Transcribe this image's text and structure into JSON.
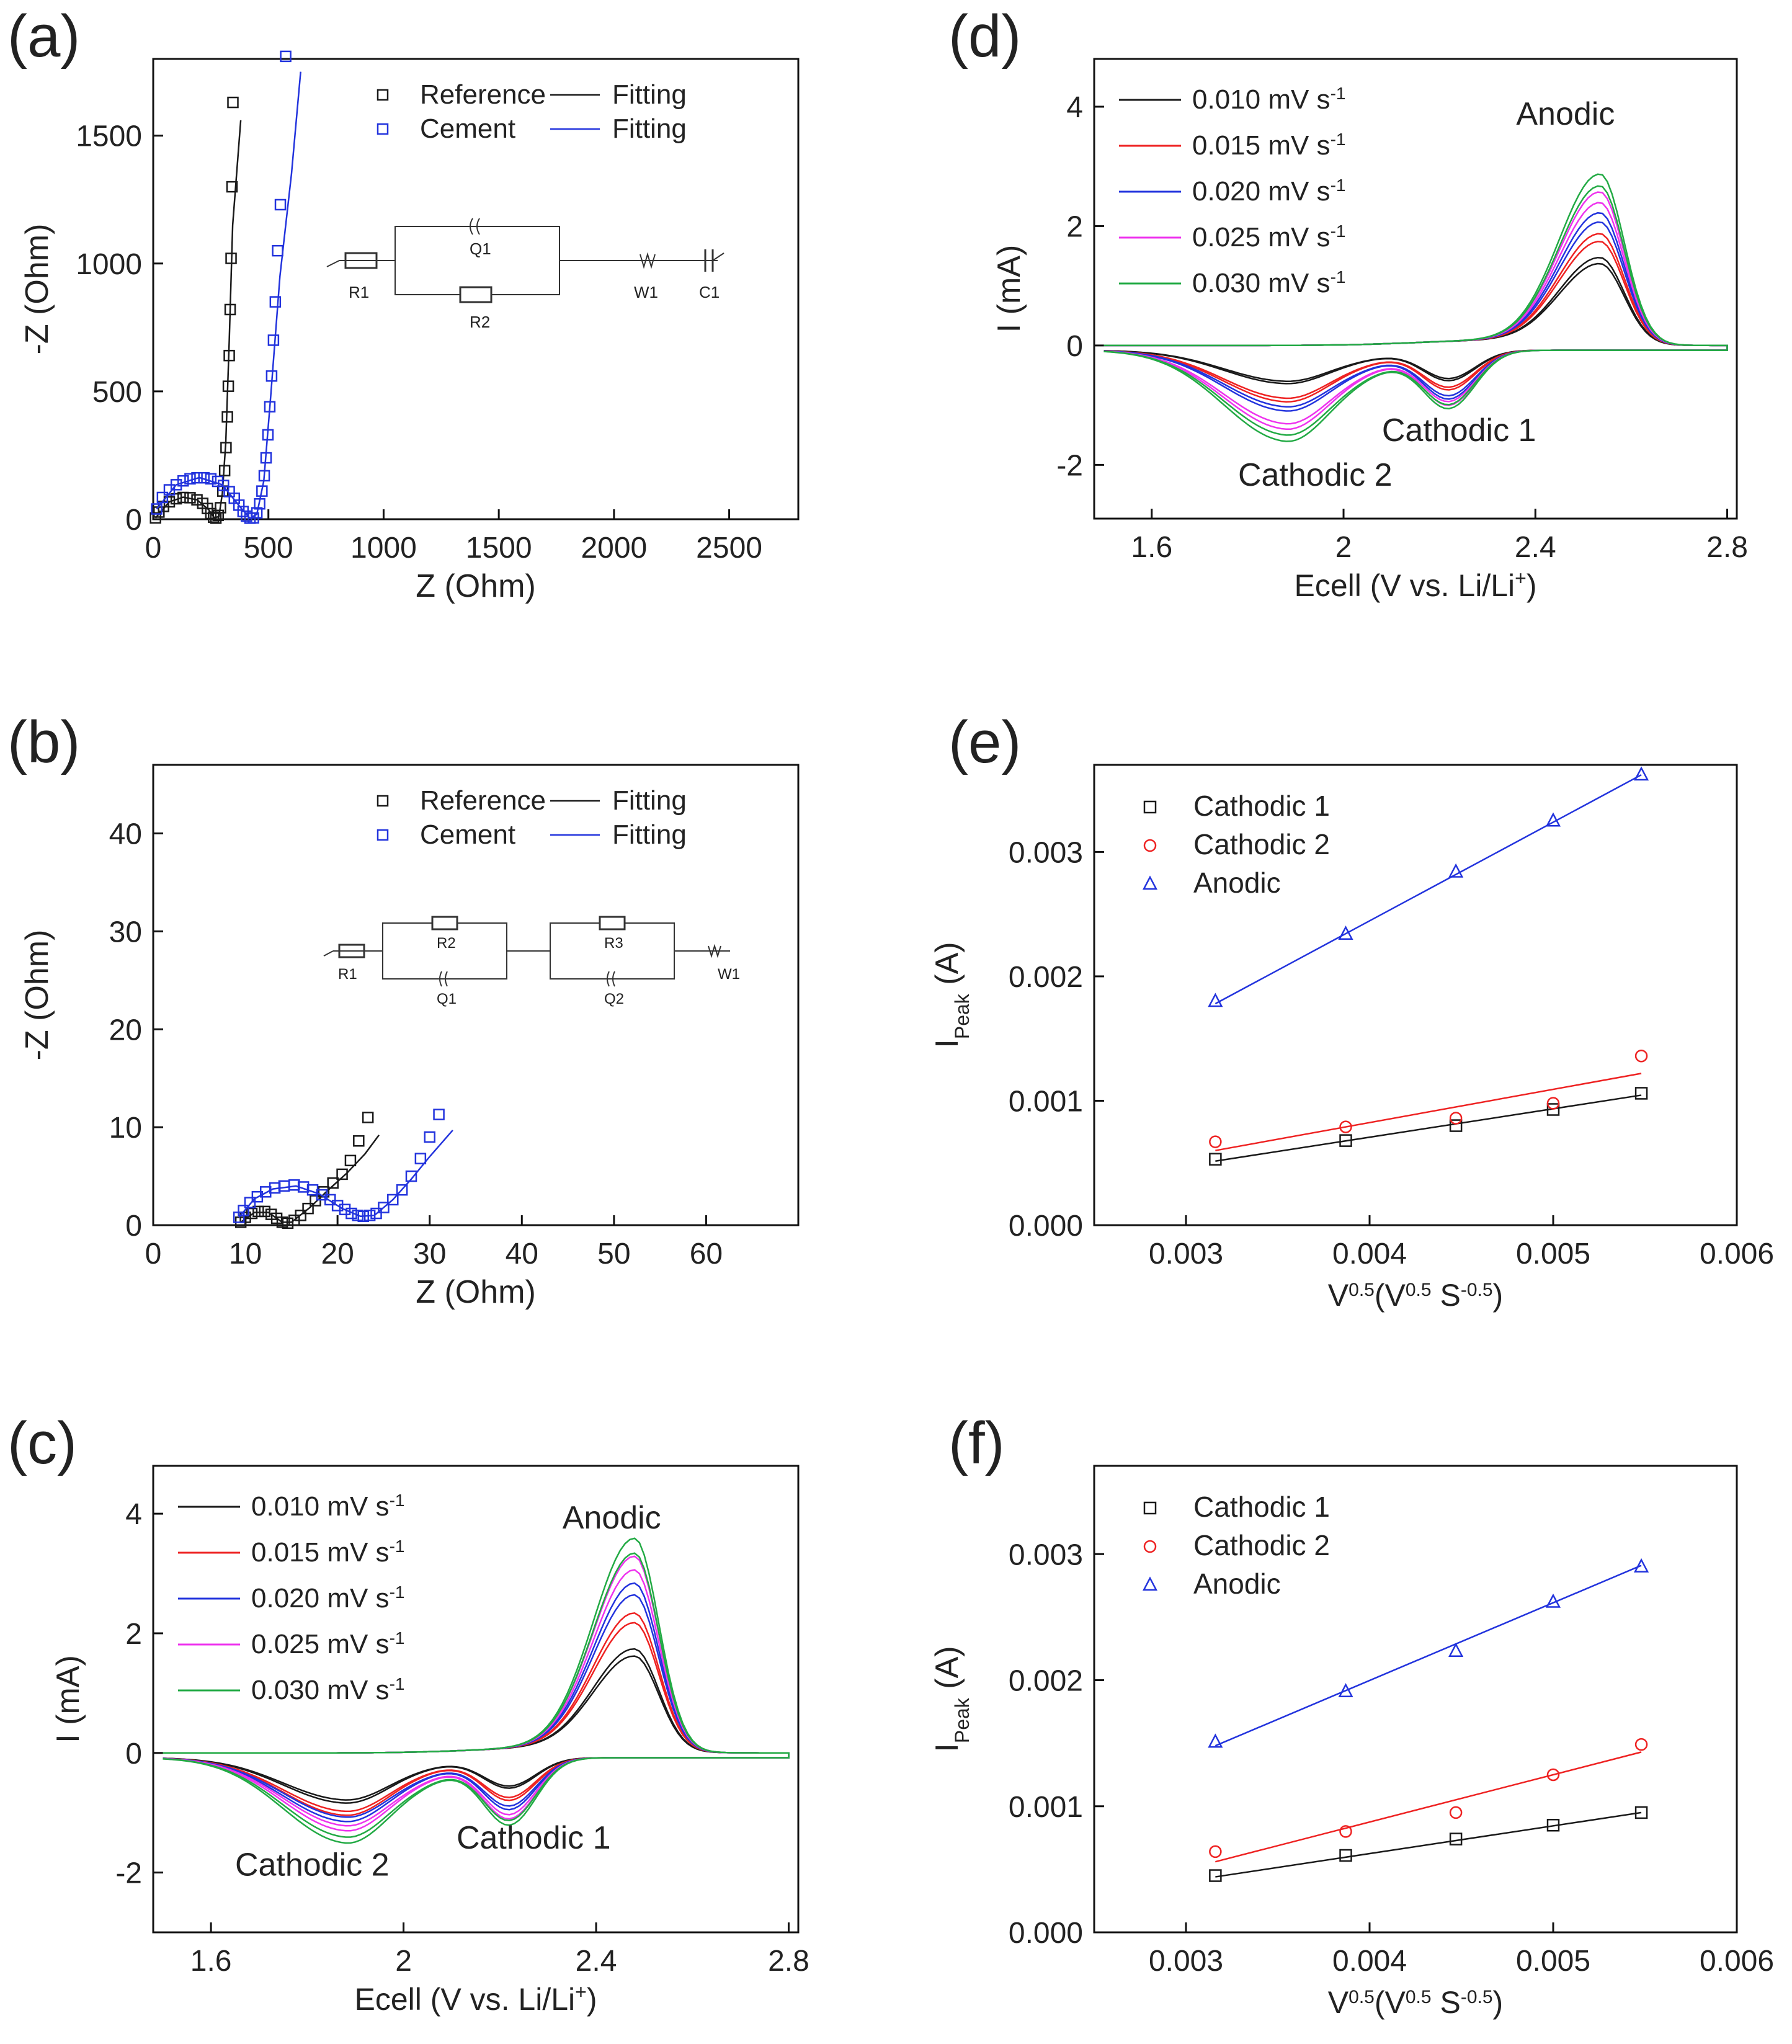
{
  "colors": {
    "black": "#1a1a1a",
    "red": "#ee2222",
    "blue": "#2233dd",
    "magenta": "#ee33ee",
    "green": "#22aa44",
    "axis": "#111111"
  },
  "chart_data": [
    {
      "id": "a",
      "panel_label": "(a)",
      "type": "scatter",
      "xlabel": "Z (Ohm)",
      "ylabel": "-Z (Ohm)",
      "xlim": [
        0,
        2800
      ],
      "ylim": [
        0,
        1800
      ],
      "xticks": [
        0,
        500,
        1000,
        1500,
        2000,
        2500
      ],
      "yticks": [
        0,
        500,
        1000,
        1500
      ],
      "legend": [
        {
          "label": "Reference",
          "marker": "square",
          "color": "#1a1a1a"
        },
        {
          "label": "Cement",
          "marker": "square",
          "color": "#2233dd"
        },
        {
          "label": "Fitting",
          "line": true,
          "color": "#1a1a1a"
        },
        {
          "label": "Fitting",
          "line": true,
          "color": "#2233dd"
        }
      ],
      "circuit": {
        "labels": [
          "R1",
          "Q1",
          "R2",
          "W1",
          "C1"
        ]
      },
      "series": [
        {
          "name": "Reference",
          "color": "#1a1a1a",
          "points": [
            [
              10,
              5
            ],
            [
              25,
              28
            ],
            [
              45,
              50
            ],
            [
              70,
              68
            ],
            [
              100,
              80
            ],
            [
              130,
              85
            ],
            [
              160,
              84
            ],
            [
              190,
              76
            ],
            [
              215,
              62
            ],
            [
              235,
              42
            ],
            [
              250,
              22
            ],
            [
              262,
              8
            ],
            [
              272,
              4
            ],
            [
              282,
              15
            ],
            [
              292,
              45
            ],
            [
              302,
              110
            ],
            [
              310,
              190
            ],
            [
              316,
              280
            ],
            [
              322,
              400
            ],
            [
              326,
              520
            ],
            [
              330,
              640
            ],
            [
              334,
              820
            ],
            [
              338,
              1020
            ],
            [
              342,
              1300
            ],
            [
              346,
              1630
            ]
          ],
          "fit": [
            [
              10,
              5
            ],
            [
              70,
              68
            ],
            [
              130,
              86
            ],
            [
              190,
              76
            ],
            [
              240,
              38
            ],
            [
              265,
              6
            ],
            [
              285,
              10
            ],
            [
              300,
              100
            ],
            [
              315,
              300
            ],
            [
              330,
              700
            ],
            [
              345,
              1150
            ],
            [
              380,
              1560
            ]
          ]
        },
        {
          "name": "Cement",
          "color": "#2233dd",
          "points": [
            [
              15,
              40
            ],
            [
              40,
              85
            ],
            [
              70,
              115
            ],
            [
              100,
              135
            ],
            [
              130,
              150
            ],
            [
              160,
              158
            ],
            [
              190,
              162
            ],
            [
              220,
              162
            ],
            [
              250,
              158
            ],
            [
              280,
              148
            ],
            [
              305,
              132
            ],
            [
              330,
              108
            ],
            [
              352,
              82
            ],
            [
              372,
              55
            ],
            [
              390,
              30
            ],
            [
              405,
              12
            ],
            [
              420,
              4
            ],
            [
              435,
              5
            ],
            [
              450,
              25
            ],
            [
              462,
              60
            ],
            [
              472,
              110
            ],
            [
              482,
              170
            ],
            [
              490,
              240
            ],
            [
              498,
              330
            ],
            [
              506,
              440
            ],
            [
              514,
              560
            ],
            [
              522,
              700
            ],
            [
              530,
              850
            ],
            [
              540,
              1050
            ],
            [
              552,
              1230
            ],
            [
              575,
              1810
            ]
          ],
          "fit": [
            [
              15,
              40
            ],
            [
              100,
              135
            ],
            [
              200,
              163
            ],
            [
              300,
              135
            ],
            [
              380,
              45
            ],
            [
              420,
              4
            ],
            [
              450,
              20
            ],
            [
              480,
              150
            ],
            [
              510,
              480
            ],
            [
              550,
              950
            ],
            [
              600,
              1350
            ],
            [
              640,
              1750
            ]
          ]
        }
      ]
    },
    {
      "id": "b",
      "panel_label": "(b)",
      "type": "scatter",
      "xlabel": "Z (Ohm)",
      "ylabel": "-Z (Ohm)",
      "xlim": [
        0,
        70
      ],
      "ylim": [
        0,
        47
      ],
      "xticks": [
        0,
        10,
        20,
        30,
        40,
        50,
        60
      ],
      "yticks": [
        0,
        10,
        20,
        30,
        40
      ],
      "legend": [
        {
          "label": "Reference",
          "marker": "square",
          "color": "#1a1a1a"
        },
        {
          "label": "Cement",
          "marker": "square",
          "color": "#2233dd"
        },
        {
          "label": "Fitting",
          "line": true,
          "color": "#1a1a1a"
        },
        {
          "label": "Fitting",
          "line": true,
          "color": "#2233dd"
        }
      ],
      "circuit": {
        "labels": [
          "R1",
          "R2",
          "Q1",
          "R3",
          "Q2",
          "W1"
        ]
      },
      "series": [
        {
          "name": "Reference",
          "color": "#1a1a1a",
          "points": [
            [
              9.5,
              0.3
            ],
            [
              10,
              0.8
            ],
            [
              10.7,
              1.2
            ],
            [
              11.4,
              1.4
            ],
            [
              12.1,
              1.4
            ],
            [
              12.8,
              1.1
            ],
            [
              13.4,
              0.7
            ],
            [
              14,
              0.3
            ],
            [
              14.6,
              0.2
            ],
            [
              15.3,
              0.5
            ],
            [
              16,
              1
            ],
            [
              16.8,
              1.7
            ],
            [
              17.6,
              2.5
            ],
            [
              18.5,
              3.4
            ],
            [
              19.5,
              4.3
            ],
            [
              20.5,
              5.2
            ],
            [
              21.4,
              6.6
            ],
            [
              22.3,
              8.6
            ],
            [
              23.3,
              11
            ]
          ],
          "fit": [
            [
              9.5,
              0.3
            ],
            [
              11,
              1.3
            ],
            [
              12.5,
              1.3
            ],
            [
              14,
              0.3
            ],
            [
              15,
              0.3
            ],
            [
              17,
              1.8
            ],
            [
              19,
              3.6
            ],
            [
              21,
              5.3
            ],
            [
              23,
              7.3
            ],
            [
              24.5,
              9.2
            ]
          ]
        },
        {
          "name": "Cement",
          "color": "#2233dd",
          "points": [
            [
              9.3,
              0.8
            ],
            [
              9.8,
              1.5
            ],
            [
              10.5,
              2.3
            ],
            [
              11.3,
              2.9
            ],
            [
              12.2,
              3.4
            ],
            [
              13.2,
              3.8
            ],
            [
              14.2,
              4
            ],
            [
              15.3,
              4.1
            ],
            [
              16.3,
              3.9
            ],
            [
              17.3,
              3.6
            ],
            [
              18.3,
              3.1
            ],
            [
              19.2,
              2.6
            ],
            [
              20,
              2
            ],
            [
              20.8,
              1.6
            ],
            [
              21.5,
              1.2
            ],
            [
              22.2,
              1
            ],
            [
              22.8,
              0.9
            ],
            [
              23.5,
              1
            ],
            [
              24.2,
              1.2
            ],
            [
              25,
              1.8
            ],
            [
              26,
              2.6
            ],
            [
              27,
              3.6
            ],
            [
              28,
              5
            ],
            [
              29,
              6.8
            ],
            [
              30,
              9
            ],
            [
              31,
              11.3
            ]
          ],
          "fit": [
            [
              9.3,
              0.8
            ],
            [
              11,
              2.7
            ],
            [
              13,
              3.7
            ],
            [
              15.5,
              4
            ],
            [
              18,
              3.2
            ],
            [
              20.5,
              1.7
            ],
            [
              22.5,
              0.9
            ],
            [
              24,
              1
            ],
            [
              26,
              2.6
            ],
            [
              28,
              4.7
            ],
            [
              30,
              7
            ],
            [
              32.5,
              9.7
            ]
          ]
        }
      ]
    },
    {
      "id": "c",
      "panel_label": "(c)",
      "type": "line",
      "xlabel": "Ecell (V vs. Li/Li",
      "xlabel_sup": "+",
      "xlabel_end": ")",
      "ylabel": "I (mA)",
      "xlim": [
        1.48,
        2.82
      ],
      "ylim": [
        -3,
        4.8
      ],
      "xticks": [
        1.6,
        2.0,
        2.4,
        2.8
      ],
      "yticks": [
        -2,
        0,
        2,
        4
      ],
      "annotations": [
        "Anodic",
        "Cathodic 1",
        "Cathodic 2"
      ],
      "series": [
        {
          "name": "0.010 mV s",
          "sup": "-1",
          "color": "#1a1a1a",
          "anodic": 1.7,
          "cath1": -0.5,
          "cath2": -0.75
        },
        {
          "name": "0.015 mV s",
          "sup": "-1",
          "color": "#ee2222",
          "anodic": 2.3,
          "cath1": -0.7,
          "cath2": -0.95
        },
        {
          "name": "0.020 mV s",
          "sup": "-1",
          "color": "#2233dd",
          "anodic": 2.8,
          "cath1": -0.85,
          "cath2": -1.05
        },
        {
          "name": "0.025 mV s",
          "sup": "-1",
          "color": "#ee33ee",
          "anodic": 3.25,
          "cath1": -1.0,
          "cath2": -1.2
        },
        {
          "name": "0.030 mV s",
          "sup": "-1",
          "color": "#22aa44",
          "anodic": 3.55,
          "cath1": -1.1,
          "cath2": -1.4
        }
      ]
    },
    {
      "id": "d",
      "panel_label": "(d)",
      "type": "line",
      "xlabel": "Ecell (V vs. Li/Li",
      "xlabel_sup": "+",
      "xlabel_end": ")",
      "ylabel": "I (mA)",
      "xlim": [
        1.48,
        2.82
      ],
      "ylim": [
        -2.9,
        4.8
      ],
      "xticks": [
        1.6,
        2.0,
        2.4,
        2.8
      ],
      "yticks": [
        -2,
        0,
        2,
        4
      ],
      "annotations": [
        "Anodic",
        "Cathodic 1",
        "Cathodic 2"
      ],
      "series": [
        {
          "name": "0.010 mV s",
          "sup": "-1",
          "color": "#1a1a1a",
          "anodic": 1.45,
          "cath1": -0.5,
          "cath2": -0.55
        },
        {
          "name": "0.015 mV s",
          "sup": "-1",
          "color": "#ee2222",
          "anodic": 1.85,
          "cath1": -0.65,
          "cath2": -0.85
        },
        {
          "name": "0.020 mV s",
          "sup": "-1",
          "color": "#2233dd",
          "anodic": 2.2,
          "cath1": -0.8,
          "cath2": -1.0
        },
        {
          "name": "0.025 mV s",
          "sup": "-1",
          "color": "#ee33ee",
          "anodic": 2.55,
          "cath1": -0.9,
          "cath2": -1.3
        },
        {
          "name": "0.030 mV s",
          "sup": "-1",
          "color": "#22aa44",
          "anodic": 2.85,
          "cath1": -0.95,
          "cath2": -1.5
        }
      ]
    },
    {
      "id": "e",
      "panel_label": "(e)",
      "type": "scatter",
      "xlabel": "V",
      "xlabel_sup1": "0.5",
      "xlabel_mid": "(V",
      "xlabel_sup2": "0.5",
      "xlabel_mid2": " S",
      "xlabel_sup3": "-0.5",
      "xlabel_end": ")",
      "ylabel": "I",
      "ylabel_sub": "Peak",
      "ylabel_end": " (A)",
      "xlim": [
        0.0025,
        0.006
      ],
      "ylim": [
        0,
        0.0037
      ],
      "xticks": [
        "0.003",
        "0.004",
        "0.005",
        "0.006"
      ],
      "yticks": [
        "0.000",
        "0.001",
        "0.002",
        "0.003"
      ],
      "x": [
        0.00316,
        0.00387,
        0.00447,
        0.005,
        0.00548
      ],
      "series": [
        {
          "name": "Cathodic 1",
          "marker": "square",
          "color": "#1a1a1a",
          "values": [
            0.00053,
            0.00068,
            0.0008,
            0.00093,
            0.00106
          ],
          "fit": [
            0.000515,
            0.001045
          ]
        },
        {
          "name": "Cathodic 2",
          "marker": "circle",
          "color": "#ee2222",
          "values": [
            0.00067,
            0.00079,
            0.00086,
            0.00098,
            0.00136
          ],
          "fit": [
            0.0006,
            0.00122
          ]
        },
        {
          "name": "Anodic",
          "marker": "triangle",
          "color": "#2233dd",
          "values": [
            0.0018,
            0.00234,
            0.00284,
            0.00325,
            0.00362
          ],
          "fit": [
            0.00178,
            0.00362
          ]
        }
      ]
    },
    {
      "id": "f",
      "panel_label": "(f)",
      "type": "scatter",
      "xlabel": "V",
      "xlabel_sup1": "0.5",
      "xlabel_mid": "(V",
      "xlabel_sup2": "0.5",
      "xlabel_mid2": " S",
      "xlabel_sup3": "-0.5",
      "xlabel_end": ")",
      "ylabel": "I",
      "ylabel_sub": "Peak",
      "ylabel_end": " (A)",
      "xlim": [
        0.0025,
        0.006
      ],
      "ylim": [
        0,
        0.0037
      ],
      "xticks": [
        "0.003",
        "0.004",
        "0.005",
        "0.006"
      ],
      "yticks": [
        "0.000",
        "0.001",
        "0.002",
        "0.003"
      ],
      "x": [
        0.00316,
        0.00387,
        0.00447,
        0.005,
        0.00548
      ],
      "series": [
        {
          "name": "Cathodic 1",
          "marker": "square",
          "color": "#1a1a1a",
          "values": [
            0.00045,
            0.00061,
            0.00074,
            0.00085,
            0.00095
          ],
          "fit": [
            0.00044,
            0.00095
          ]
        },
        {
          "name": "Cathodic 2",
          "marker": "circle",
          "color": "#ee2222",
          "values": [
            0.00064,
            0.0008,
            0.00095,
            0.00125,
            0.00149
          ],
          "fit": [
            0.00056,
            0.00143
          ]
        },
        {
          "name": "Anodic",
          "marker": "triangle",
          "color": "#2233dd",
          "values": [
            0.00151,
            0.00191,
            0.00223,
            0.00262,
            0.0029
          ],
          "fit": [
            0.00148,
            0.00291
          ]
        }
      ]
    }
  ]
}
